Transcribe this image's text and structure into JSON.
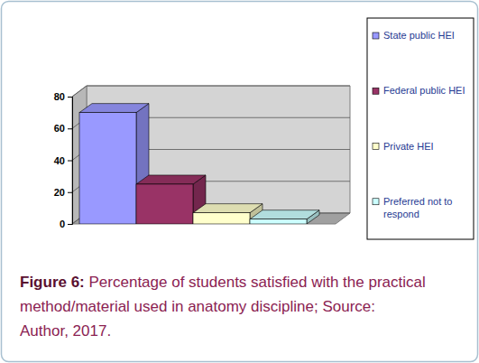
{
  "chart_data": {
    "type": "bar",
    "categories": [
      "State public HEI",
      "Federal public HEI",
      "Private HEI",
      "Preferred not to respond"
    ],
    "values": [
      70,
      25,
      7,
      3
    ],
    "colors": [
      "#9999ff",
      "#993366",
      "#ffffcc",
      "#ccffff"
    ],
    "ylim": [
      0,
      80
    ],
    "yticks": [
      0,
      20,
      40,
      60,
      80
    ],
    "grid": true,
    "legend": "right",
    "tick_labels": "y",
    "caption_label": "Figure 6:",
    "caption": "Percentage of students satisfied with the practical method/material used in anatomy discipline; Source: Author, 2017."
  }
}
